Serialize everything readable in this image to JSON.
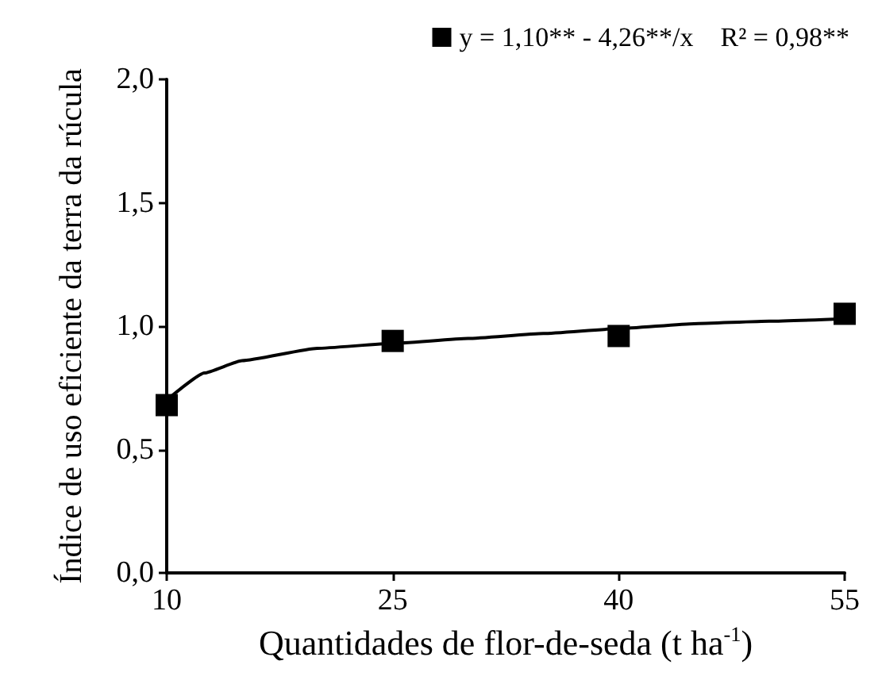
{
  "chart_data": {
    "type": "scatter",
    "xlabel": "Quantidades de flor-de-seda (t ha$^{-1}$)",
    "ylabel": "Índice de uso eficiente da terra da rúcula",
    "xlim": [
      10,
      55
    ],
    "xticks": [
      10,
      25,
      40,
      55
    ],
    "ylim": [
      0,
      2
    ],
    "yticks": [
      {
        "value": 0,
        "label": "0,0"
      },
      {
        "value": 0.5,
        "label": "0,5"
      },
      {
        "value": 1,
        "label": "1,0"
      },
      {
        "value": 1.5,
        "label": "1,5"
      },
      {
        "value": 2,
        "label": "2,0"
      }
    ],
    "legend": "top right",
    "line_style": "solid",
    "series": [
      {
        "name": "y = 1,10** - 4,26**/x    R² = 0,98**",
        "marker": "square",
        "color": "#000000",
        "x": [
          10,
          25,
          40,
          55
        ],
        "values": [
          0.68,
          0.94,
          0.96,
          1.05
        ]
      },
      {
        "type": "line",
        "marker": "none",
        "color": "#000000",
        "x": [
          10,
          12.5,
          15,
          20,
          25,
          30,
          35,
          40,
          45,
          50,
          55
        ],
        "values": [
          0.7,
          0.81,
          0.86,
          0.91,
          0.93,
          0.95,
          0.97,
          0.99,
          1.01,
          1.02,
          1.03
        ]
      }
    ]
  }
}
